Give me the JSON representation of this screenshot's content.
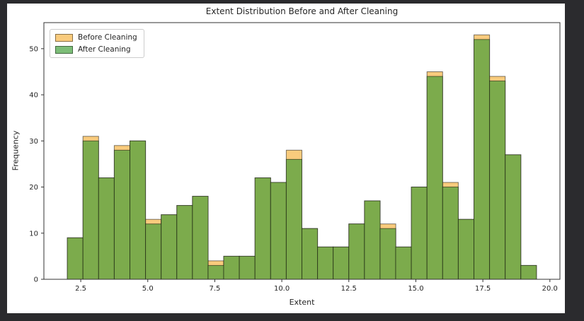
{
  "page": {
    "background_color": "#2b2b2e",
    "figure_background_color": "#ffffff"
  },
  "chart_data": {
    "type": "bar",
    "subtype": "overlapping-histogram",
    "title": "Extent Distribution Before and After Cleaning",
    "xlabel": "Extent",
    "ylabel": "Frequency",
    "grid": false,
    "legend_position": "upper left",
    "xlim": [
      1.125,
      20.375
    ],
    "ylim": [
      0,
      55.65
    ],
    "bin_start": 2.0,
    "bin_width": 0.58333,
    "bin_count": 30,
    "x_ticks": [
      2.5,
      5.0,
      7.5,
      10.0,
      12.5,
      15.0,
      17.5,
      20.0
    ],
    "x_tick_labels": [
      "2.5",
      "5.0",
      "7.5",
      "10.0",
      "12.5",
      "15.0",
      "17.5",
      "20.0"
    ],
    "y_ticks": [
      0,
      10,
      20,
      30,
      40,
      50
    ],
    "y_tick_labels": [
      "0",
      "10",
      "20",
      "30",
      "40",
      "50"
    ],
    "axis_color": "#333333",
    "text_color": "#252525",
    "edge_color": "rgba(0,0,0,0.5)",
    "series": [
      {
        "name": "Before Cleaning",
        "color": "#f9cb7d",
        "values": [
          9,
          31,
          22,
          29,
          30,
          13,
          14,
          16,
          18,
          4,
          5,
          5,
          22,
          21,
          28,
          11,
          7,
          7,
          12,
          17,
          12,
          7,
          20,
          45,
          21,
          13,
          53,
          44,
          27,
          3
        ]
      },
      {
        "name": "After Cleaning",
        "color": "#7cab4c",
        "values": [
          9,
          30,
          22,
          28,
          30,
          12,
          14,
          16,
          18,
          3,
          5,
          5,
          22,
          21,
          26,
          11,
          7,
          7,
          12,
          17,
          11,
          7,
          20,
          44,
          20,
          13,
          52,
          43,
          27,
          3
        ]
      }
    ],
    "legend": {
      "entries": [
        {
          "label": "Before Cleaning",
          "swatch_color": "#f9cb7d"
        },
        {
          "label": "After Cleaning",
          "swatch_color": "#7cbd77"
        }
      ]
    }
  }
}
